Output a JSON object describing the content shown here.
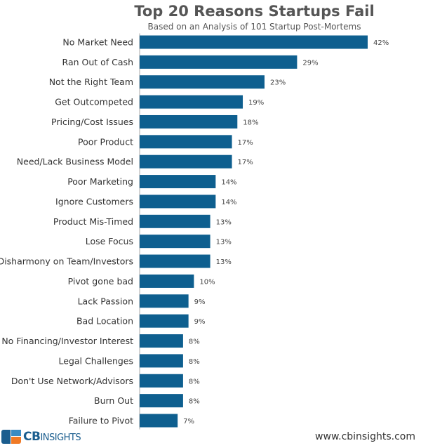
{
  "chart_data": {
    "type": "bar",
    "orientation": "horizontal",
    "title": "Top 20 Reasons Startups Fail",
    "subtitle": "Based on an Analysis of 101 Startup Post-Mortems",
    "categories": [
      "No Market Need",
      "Ran Out of Cash",
      "Not the Right Team",
      "Get Outcompeted",
      "Pricing/Cost Issues",
      "Poor Product",
      "Need/Lack Business Model",
      "Poor Marketing",
      "Ignore Customers",
      "Product Mis-Timed",
      "Lose Focus",
      "Disharmony on Team/Investors",
      "Pivot gone bad",
      "Lack Passion",
      "Bad Location",
      "No Financing/Investor Interest",
      "Legal Challenges",
      "Don't Use Network/Advisors",
      "Burn Out",
      "Failure to Pivot"
    ],
    "values": [
      42,
      29,
      23,
      19,
      18,
      17,
      17,
      14,
      14,
      13,
      13,
      13,
      10,
      9,
      9,
      8,
      8,
      8,
      8,
      7
    ],
    "data_labels": [
      "42%",
      "29%",
      "23%",
      "19%",
      "18%",
      "17%",
      "17%",
      "14%",
      "14%",
      "13%",
      "13%",
      "13%",
      "10%",
      "9%",
      "9%",
      "8%",
      "8%",
      "8%",
      "8%",
      "7%"
    ],
    "unit": "%",
    "grid": false,
    "bar_color": "#0e5f8f"
  },
  "footer": {
    "brand_bold": "CB",
    "brand_rest": "INSIGHTS",
    "url": "www.cbinsights.com"
  }
}
